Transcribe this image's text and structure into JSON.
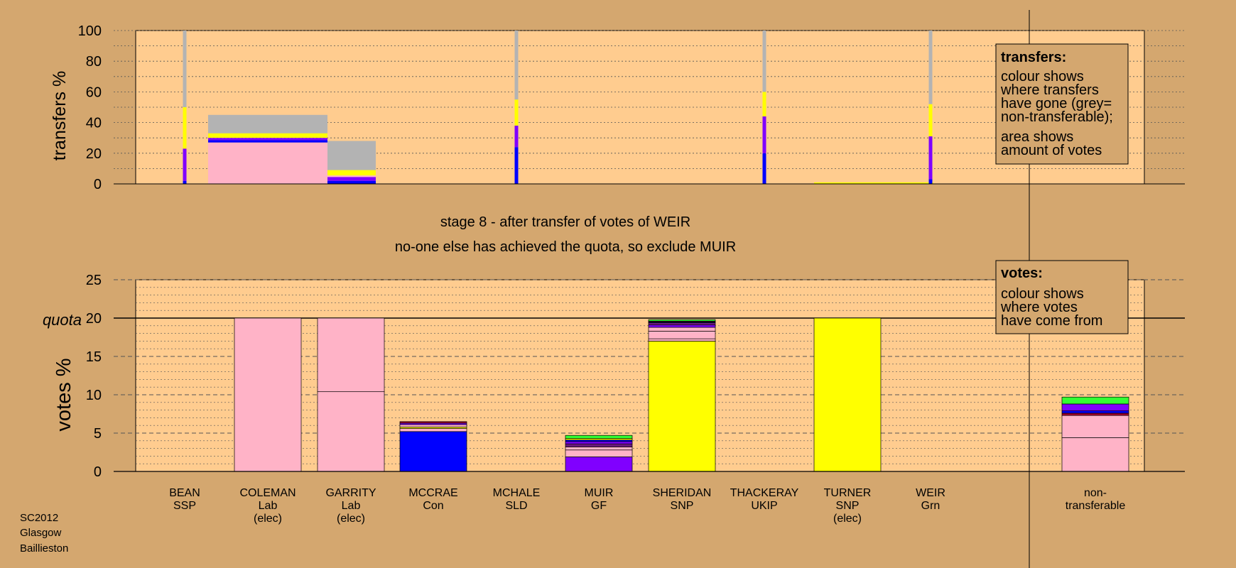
{
  "colors": {
    "background": "#d4a76f",
    "plot_area": "#ffcc8f",
    "SSP": "#ff0000",
    "Lab": "#ffb3c7",
    "Con": "#0000ff",
    "SLD": "#ffd24d",
    "GF": "#8000ff",
    "SNP": "#ffff00",
    "UKIP": "#8b4d9a",
    "Grn": "#33ff33",
    "non_transferable": "#b3b3b3",
    "dark_red": "#a0002a",
    "purple_dark": "#6a1a7a"
  },
  "top_panel": {
    "ylabel": "transfers %",
    "legend": {
      "title": "transfers:",
      "line1": "colour shows",
      "line2": "where transfers",
      "line3": "have gone (grey=",
      "line4": "non-transferable);",
      "line5": "area shows",
      "line6": "amount of votes"
    }
  },
  "stage_text": {
    "line1": "stage 8 - after transfer of votes of WEIR",
    "line2": "no-one else has achieved the quota, so exclude MUIR"
  },
  "bottom_panel": {
    "ylabel": "votes %",
    "quota_label": "quota",
    "legend": {
      "title": "votes:",
      "line1": "colour shows",
      "line2": "where votes",
      "line3": "have come from"
    }
  },
  "footer": {
    "line1": "SC2012",
    "line2": "Glasgow",
    "line3": "Baillieston"
  },
  "chart_data": [
    {
      "type": "bar",
      "ylabel": "transfers %",
      "ylim": [
        0,
        100
      ],
      "yticks": [
        0,
        20,
        40,
        60,
        80,
        100
      ],
      "grid": true,
      "bars": [
        {
          "candidate": "BEAN",
          "width": "thin",
          "segments": [
            {
              "color": "Con",
              "value": 2
            },
            {
              "color": "GF",
              "value": 21
            },
            {
              "color": "SNP",
              "value": 27
            },
            {
              "color": "non_transferable",
              "value": 50
            }
          ]
        },
        {
          "candidate": "COLEMAN",
          "width": "wide",
          "segments": [
            {
              "color": "Lab",
              "value": 27
            },
            {
              "color": "Con",
              "value": 1.5
            },
            {
              "color": "GF",
              "value": 1.5
            },
            {
              "color": "SNP",
              "value": 3
            },
            {
              "color": "non_transferable",
              "value": 12
            }
          ]
        },
        {
          "candidate": "GARRITY",
          "width": "medium",
          "segments": [
            {
              "color": "Con",
              "value": 2
            },
            {
              "color": "GF",
              "value": 2.5
            },
            {
              "color": "Lab",
              "value": 1
            },
            {
              "color": "SNP",
              "value": 3.5
            },
            {
              "color": "non_transferable",
              "value": 19
            }
          ]
        },
        {
          "candidate": "MCHALE",
          "width": "thin",
          "segments": [
            {
              "color": "Con",
              "value": 24
            },
            {
              "color": "GF",
              "value": 14
            },
            {
              "color": "SNP",
              "value": 17
            },
            {
              "color": "non_transferable",
              "value": 45
            }
          ]
        },
        {
          "candidate": "THACKERAY",
          "width": "thin",
          "segments": [
            {
              "color": "Con",
              "value": 20
            },
            {
              "color": "GF",
              "value": 24
            },
            {
              "color": "SNP",
              "value": 16
            },
            {
              "color": "non_transferable",
              "value": 40
            }
          ]
        },
        {
          "candidate": "TURNER",
          "width": "wide",
          "segments": [
            {
              "color": "SNP",
              "value": 1
            }
          ]
        },
        {
          "candidate": "WEIR",
          "width": "thin",
          "segments": [
            {
              "color": "Con",
              "value": 3
            },
            {
              "color": "GF",
              "value": 28
            },
            {
              "color": "SNP",
              "value": 21
            },
            {
              "color": "non_transferable",
              "value": 48
            }
          ]
        }
      ]
    },
    {
      "type": "bar",
      "ylabel": "votes %",
      "ylim": [
        0,
        25
      ],
      "yticks": [
        0,
        5,
        10,
        15,
        20,
        25
      ],
      "quota": 20,
      "grid": true,
      "categories": [
        {
          "name": "BEAN",
          "party": "SSP",
          "elected": ""
        },
        {
          "name": "COLEMAN",
          "party": "Lab",
          "elected": "(elec)"
        },
        {
          "name": "GARRITY",
          "party": "Lab",
          "elected": "(elec)"
        },
        {
          "name": "MCCRAE",
          "party": "Con",
          "elected": ""
        },
        {
          "name": "MCHALE",
          "party": "SLD",
          "elected": ""
        },
        {
          "name": "MUIR",
          "party": "GF",
          "elected": ""
        },
        {
          "name": "SHERIDAN",
          "party": "SNP",
          "elected": ""
        },
        {
          "name": "THACKERAY",
          "party": "UKIP",
          "elected": ""
        },
        {
          "name": "TURNER",
          "party": "SNP",
          "elected": "(elec)"
        },
        {
          "name": "WEIR",
          "party": "Grn",
          "elected": ""
        },
        {
          "name": "non-",
          "party": "transferable",
          "elected": ""
        }
      ],
      "bars": [
        {
          "candidate": "BEAN",
          "segments": []
        },
        {
          "candidate": "COLEMAN",
          "segments": [
            {
              "color": "Lab",
              "value": 20
            }
          ]
        },
        {
          "candidate": "GARRITY",
          "segments": [
            {
              "color": "Lab",
              "value": 10.4
            },
            {
              "color": "Lab",
              "value": 9.6
            }
          ]
        },
        {
          "candidate": "MCCRAE",
          "segments": [
            {
              "color": "Con",
              "value": 5.2
            },
            {
              "color": "Lab",
              "value": 0.4
            },
            {
              "color": "SNP",
              "value": 0.2
            },
            {
              "color": "Lab",
              "value": 0.3
            },
            {
              "color": "GF",
              "value": 0.2
            },
            {
              "color": "dark_red",
              "value": 0.2
            }
          ]
        },
        {
          "candidate": "MCHALE",
          "segments": []
        },
        {
          "candidate": "MUIR",
          "segments": [
            {
              "color": "GF",
              "value": 1.9
            },
            {
              "color": "Lab",
              "value": 0.9
            },
            {
              "color": "Lab",
              "value": 0.4
            },
            {
              "color": "purple_dark",
              "value": 0.4
            },
            {
              "color": "GF",
              "value": 0.3
            },
            {
              "color": "Con",
              "value": 0.2
            },
            {
              "color": "SNP",
              "value": 0.2
            },
            {
              "color": "Grn",
              "value": 0.4
            }
          ]
        },
        {
          "candidate": "SHERIDAN",
          "segments": [
            {
              "color": "SNP",
              "value": 17
            },
            {
              "color": "Lab",
              "value": 0.3
            },
            {
              "color": "Lab",
              "value": 1
            },
            {
              "color": "Lab",
              "value": 0.5
            },
            {
              "color": "GF",
              "value": 0.3
            },
            {
              "color": "purple_dark",
              "value": 0.3
            },
            {
              "color": "Con",
              "value": 0.1
            },
            {
              "color": "dark_red",
              "value": 0.1
            },
            {
              "color": "Grn",
              "value": 0.2
            }
          ]
        },
        {
          "candidate": "THACKERAY",
          "segments": []
        },
        {
          "candidate": "TURNER",
          "segments": [
            {
              "color": "SNP",
              "value": 20
            }
          ]
        },
        {
          "candidate": "WEIR",
          "segments": []
        },
        {
          "candidate": "non-transferable",
          "segments": [
            {
              "color": "Lab",
              "value": 4.4
            },
            {
              "color": "Lab",
              "value": 2.9
            },
            {
              "color": "dark_red",
              "value": 0.3
            },
            {
              "color": "Con",
              "value": 0.3
            },
            {
              "color": "GF",
              "value": 0.9
            },
            {
              "color": "Grn",
              "value": 0.9
            }
          ]
        }
      ]
    }
  ]
}
